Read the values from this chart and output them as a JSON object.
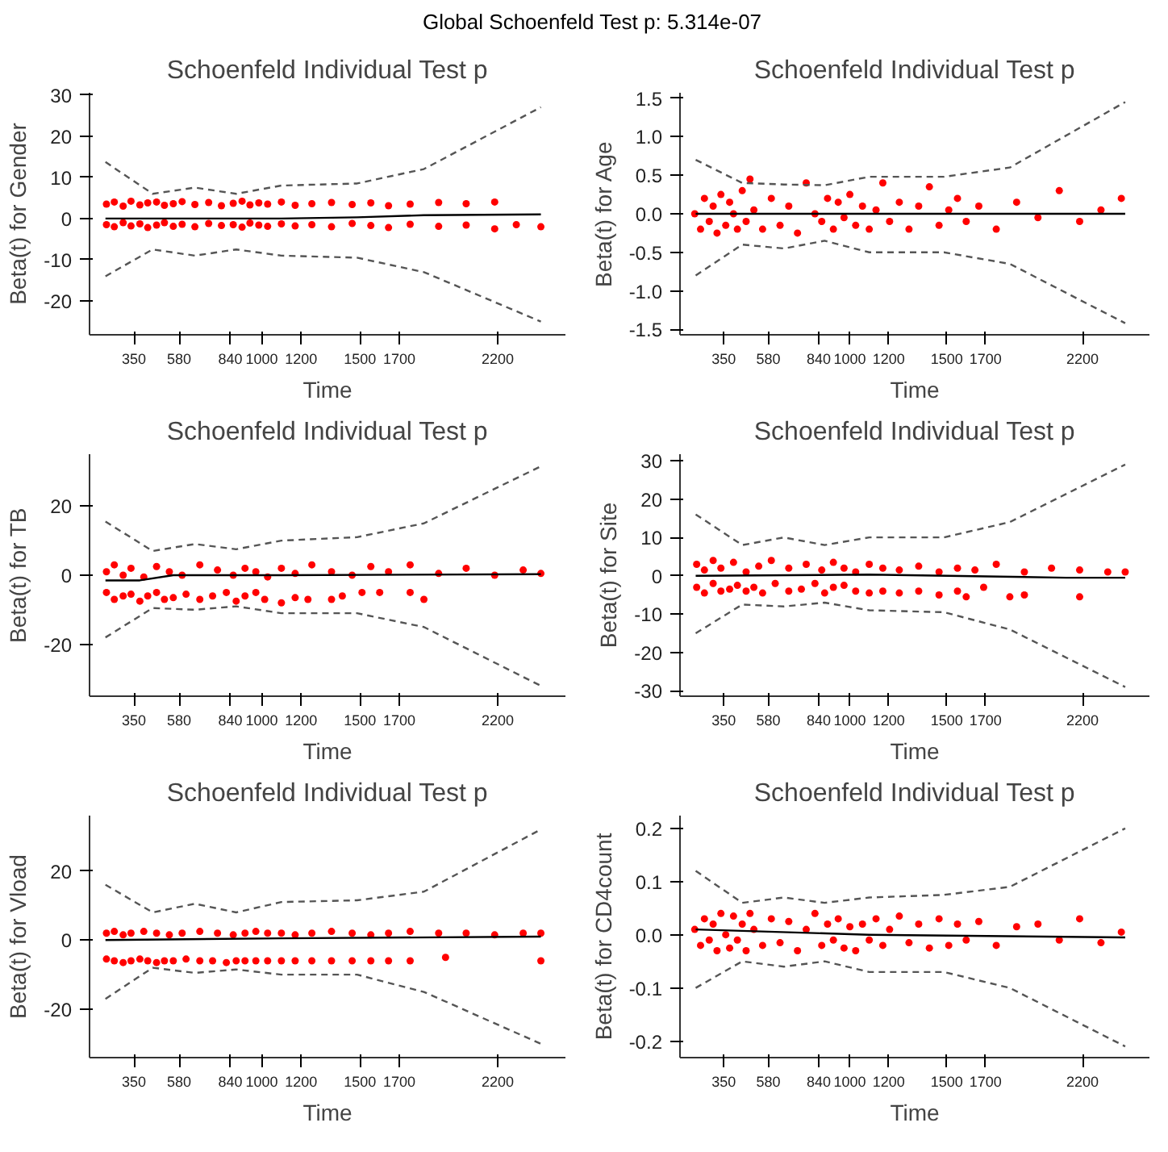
{
  "chart_data": [
    {
      "type": "scatter",
      "title": "Schoenfeld Individual Test p",
      "xlabel": "Time",
      "ylabel": "Beta(t) for Gender",
      "annotations": [
        "Global Schoenfeld Test p: 5.314e-07"
      ],
      "xlim": [
        124,
        2545
      ],
      "xticks": [
        350,
        580,
        840,
        1000,
        1200,
        1500,
        1700,
        2200
      ],
      "ylim": [
        -28.2,
        30.5
      ],
      "yticks": [
        -20,
        -10,
        0,
        10,
        20,
        30
      ],
      "series": [
        {
          "marker": "circle",
          "color": "#ff0000",
          "x": [
            210,
            250,
            295,
            335,
            380,
            420,
            465,
            505,
            550,
            595,
            660,
            730,
            795,
            855,
            900,
            940,
            985,
            1030,
            1100,
            1170,
            1255,
            1355,
            1460,
            1555,
            1645,
            1755,
            1900,
            2040,
            2185,
            210,
            250,
            295,
            335,
            380,
            420,
            465,
            505,
            550,
            595,
            660,
            730,
            795,
            855,
            900,
            940,
            985,
            1030,
            1100,
            1170,
            1255,
            1355,
            1460,
            1555,
            1645,
            1755,
            1900,
            2040,
            2185,
            2295,
            2420
          ],
          "values": [
            3.5,
            4,
            3,
            4.2,
            3.3,
            3.8,
            4,
            3.2,
            3.6,
            4.1,
            3.4,
            3.9,
            3.1,
            3.7,
            4.2,
            3.3,
            3.8,
            3.5,
            4,
            3.2,
            3.6,
            3.9,
            3.4,
            3.8,
            3.1,
            3.5,
            3.9,
            3.6,
            4,
            -1.5,
            -2,
            -1,
            -1.8,
            -1.3,
            -2.2,
            -1.6,
            -1,
            -1.9,
            -1.4,
            -2,
            -1.2,
            -1.7,
            -1.5,
            -2.1,
            -1.1,
            -1.6,
            -1.9,
            -1.3,
            -1.8,
            -1.5,
            -2,
            -1.2,
            -1.7,
            -2.2,
            -1.4,
            -1.9,
            -1.6,
            -2.5,
            -1.5,
            -2
          ]
        },
        {
          "type": "line",
          "marker": "none",
          "line_style": "solid",
          "color": "#000000",
          "x": [
            205,
            1100,
            1485,
            1825,
            2420
          ],
          "values": [
            0,
            0,
            0.3,
            0.8,
            1
          ]
        },
        {
          "type": "line",
          "marker": "none",
          "line_style": "dashed",
          "color": "#555555",
          "x": [
            205,
            445,
            660,
            870,
            1100,
            1485,
            1825,
            2420
          ],
          "values": [
            13.7,
            6,
            7.5,
            6,
            8,
            8.5,
            12,
            27
          ]
        },
        {
          "type": "line",
          "marker": "none",
          "line_style": "dashed",
          "color": "#555555",
          "x": [
            205,
            445,
            660,
            870,
            1100,
            1485,
            1825,
            2420
          ],
          "values": [
            -14,
            -7.5,
            -9,
            -7.5,
            -9,
            -9.5,
            -13,
            -25
          ]
        }
      ]
    },
    {
      "type": "scatter",
      "title": "Schoenfeld Individual Test p",
      "xlabel": "Time",
      "ylabel": "Beta(t) for Age",
      "xlim": [
        124,
        2545
      ],
      "xticks": [
        350,
        580,
        840,
        1000,
        1200,
        1500,
        1700,
        2200
      ],
      "ylim": [
        -1.57,
        1.57
      ],
      "yticks": [
        {
          "value": -1.5,
          "label": "-1.5"
        },
        {
          "value": -1,
          "label": "-1.0"
        },
        {
          "value": -0.5,
          "label": "-0.5"
        },
        {
          "value": 0,
          "label": "0.0"
        },
        {
          "value": 0.5,
          "label": "0.5"
        },
        {
          "value": 1,
          "label": "1.0"
        },
        {
          "value": 1.5,
          "label": "1.5"
        }
      ],
      "series": [
        {
          "marker": "circle",
          "color": "#ff0000",
          "x": [
            200,
            230,
            250,
            275,
            295,
            315,
            335,
            360,
            380,
            400,
            420,
            445,
            465,
            485,
            505,
            550,
            595,
            640,
            685,
            730,
            775,
            820,
            855,
            885,
            915,
            940,
            970,
            1000,
            1030,
            1065,
            1100,
            1135,
            1170,
            1205,
            1255,
            1305,
            1355,
            1410,
            1460,
            1510,
            1555,
            1600,
            1665,
            1755,
            1860,
            1970,
            2080,
            2185,
            2295,
            2400
          ],
          "values": [
            0,
            -0.2,
            0.2,
            -0.1,
            0.1,
            -0.25,
            0.25,
            -0.15,
            0.15,
            0,
            -0.2,
            0.3,
            -0.1,
            0.45,
            0.05,
            -0.2,
            0.2,
            -0.15,
            0.1,
            -0.25,
            0.4,
            0,
            -0.1,
            0.2,
            -0.2,
            0.15,
            -0.05,
            0.25,
            -0.15,
            0.1,
            -0.2,
            0.05,
            0.4,
            -0.1,
            0.15,
            -0.2,
            0.1,
            0.35,
            -0.15,
            0.05,
            0.2,
            -0.1,
            0.1,
            -0.2,
            0.15,
            -0.05,
            0.3,
            -0.1,
            0.05,
            0.2
          ]
        },
        {
          "type": "line",
          "marker": "none",
          "line_style": "solid",
          "color": "#000000",
          "x": [
            205,
            1100,
            2420
          ],
          "values": [
            0,
            0,
            0
          ]
        },
        {
          "type": "line",
          "marker": "none",
          "line_style": "dashed",
          "color": "#555555",
          "x": [
            205,
            445,
            660,
            870,
            1100,
            1485,
            1825,
            2420
          ],
          "values": [
            0.7,
            0.4,
            0.38,
            0.37,
            0.48,
            0.48,
            0.6,
            1.45
          ]
        },
        {
          "type": "line",
          "marker": "none",
          "line_style": "dashed",
          "color": "#555555",
          "x": [
            205,
            445,
            660,
            870,
            1100,
            1485,
            1825,
            2420
          ],
          "values": [
            -0.8,
            -0.4,
            -0.45,
            -0.35,
            -0.5,
            -0.5,
            -0.65,
            -1.42
          ]
        }
      ]
    },
    {
      "type": "scatter",
      "title": "Schoenfeld Individual Test p",
      "xlabel": "Time",
      "ylabel": "Beta(t) for TB",
      "xlim": [
        124,
        2545
      ],
      "xticks": [
        350,
        580,
        840,
        1000,
        1200,
        1500,
        1700,
        2200
      ],
      "ylim": [
        -35,
        35
      ],
      "yticks": [
        -20,
        0,
        20
      ],
      "series": [
        {
          "marker": "circle",
          "color": "#ff0000",
          "x": [
            210,
            250,
            295,
            335,
            400,
            465,
            530,
            595,
            685,
            775,
            855,
            915,
            970,
            1030,
            1100,
            1170,
            1255,
            1355,
            1460,
            1555,
            1645,
            1755,
            1900,
            2040,
            2185,
            2330,
            2420,
            210,
            250,
            295,
            335,
            380,
            420,
            465,
            505,
            550,
            615,
            685,
            750,
            820,
            870,
            915,
            970,
            1015,
            1100,
            1170,
            1235,
            1355,
            1410,
            1510,
            1600,
            1755,
            1825
          ],
          "values": [
            1,
            3,
            0,
            2,
            -0.5,
            2.5,
            1,
            0,
            3,
            1.5,
            0,
            2,
            1,
            -0.5,
            2,
            0.5,
            3,
            1,
            0,
            2.5,
            1,
            3,
            0.5,
            2,
            0,
            1.5,
            0.5,
            -5,
            -7,
            -6,
            -5.5,
            -7.5,
            -6,
            -5,
            -7,
            -6.5,
            -5.5,
            -7,
            -6,
            -5,
            -7.5,
            -6,
            -5,
            -7,
            -8,
            -6.5,
            -7,
            -7,
            -6,
            -5,
            -5,
            -5,
            -7
          ]
        },
        {
          "type": "line",
          "marker": "none",
          "line_style": "solid",
          "color": "#000000",
          "x": [
            205,
            380,
            550,
            1100,
            2420
          ],
          "values": [
            -1.5,
            -1.5,
            0,
            0,
            0.3
          ]
        },
        {
          "type": "line",
          "marker": "none",
          "line_style": "dashed",
          "color": "#555555",
          "x": [
            205,
            445,
            660,
            870,
            1100,
            1485,
            1825,
            2420
          ],
          "values": [
            15.5,
            7,
            9,
            7.5,
            10,
            11,
            15,
            31.5
          ]
        },
        {
          "type": "line",
          "marker": "none",
          "line_style": "dashed",
          "color": "#555555",
          "x": [
            205,
            445,
            660,
            870,
            1100,
            1485,
            1825,
            2420
          ],
          "values": [
            -18,
            -9.5,
            -10,
            -9,
            -11,
            -11,
            -15,
            -32
          ]
        }
      ]
    },
    {
      "type": "scatter",
      "title": "Schoenfeld Individual Test p",
      "xlabel": "Time",
      "ylabel": "Beta(t) for Site",
      "xlim": [
        124,
        2545
      ],
      "xticks": [
        350,
        580,
        840,
        1000,
        1200,
        1500,
        1700,
        2200
      ],
      "ylim": [
        -31.4,
        31.7
      ],
      "yticks": [
        -30,
        -20,
        -10,
        0,
        10,
        20,
        30
      ],
      "series": [
        {
          "marker": "circle",
          "color": "#ff0000",
          "x": [
            210,
            250,
            295,
            335,
            400,
            465,
            530,
            595,
            685,
            775,
            855,
            915,
            970,
            1030,
            1100,
            1170,
            1255,
            1355,
            1460,
            1555,
            1645,
            1755,
            1900,
            2040,
            2185,
            2330,
            2420,
            210,
            250,
            295,
            335,
            380,
            420,
            465,
            505,
            550,
            615,
            685,
            750,
            820,
            870,
            915,
            970,
            1030,
            1100,
            1170,
            1255,
            1355,
            1460,
            1555,
            1600,
            1690,
            1825,
            1900,
            2185
          ],
          "values": [
            3,
            1.5,
            4,
            2,
            3.5,
            1,
            2.5,
            4,
            2,
            3,
            1.5,
            3.5,
            2,
            1,
            3,
            2,
            1.5,
            2.5,
            1,
            2,
            1.5,
            3,
            1,
            2,
            1.5,
            1,
            1,
            -3,
            -4.5,
            -2,
            -4,
            -3.5,
            -2.5,
            -4,
            -3,
            -4.5,
            -2,
            -4,
            -3.5,
            -2,
            -4.5,
            -3,
            -2.5,
            -4,
            -4.5,
            -4,
            -4.5,
            -4,
            -5,
            -4,
            -5.5,
            -3,
            -5.5,
            -5,
            -5.5
          ]
        },
        {
          "type": "line",
          "marker": "none",
          "line_style": "solid",
          "color": "#000000",
          "x": [
            205,
            1100,
            2115,
            2420
          ],
          "values": [
            0,
            0.3,
            -0.5,
            -0.5
          ]
        },
        {
          "type": "line",
          "marker": "none",
          "line_style": "dashed",
          "color": "#555555",
          "x": [
            205,
            445,
            660,
            870,
            1100,
            1485,
            1825,
            2420
          ],
          "values": [
            16,
            8,
            10,
            8,
            10,
            10,
            14,
            29
          ]
        },
        {
          "type": "line",
          "marker": "none",
          "line_style": "dashed",
          "color": "#555555",
          "x": [
            205,
            445,
            660,
            870,
            1100,
            1485,
            1825,
            2420
          ],
          "values": [
            -15,
            -7.5,
            -8,
            -7,
            -9,
            -9.5,
            -14,
            -29
          ]
        }
      ]
    },
    {
      "type": "scatter",
      "title": "Schoenfeld Individual Test p",
      "xlabel": "Time",
      "ylabel": "Beta(t) for Vload",
      "xlim": [
        124,
        2545
      ],
      "xticks": [
        350,
        580,
        840,
        1000,
        1200,
        1500,
        1700,
        2200
      ],
      "ylim": [
        -34,
        36
      ],
      "yticks": [
        -20,
        0,
        20
      ],
      "series": [
        {
          "marker": "circle",
          "color": "#ff0000",
          "x": [
            210,
            250,
            295,
            335,
            400,
            465,
            530,
            595,
            685,
            775,
            855,
            915,
            970,
            1030,
            1100,
            1170,
            1255,
            1355,
            1460,
            1555,
            1645,
            1755,
            1900,
            2040,
            2185,
            2330,
            2420,
            210,
            250,
            295,
            335,
            380,
            420,
            465,
            505,
            550,
            615,
            685,
            750,
            820,
            870,
            915,
            970,
            1030,
            1100,
            1170,
            1255,
            1355,
            1460,
            1555,
            1645,
            1755,
            1935,
            2420
          ],
          "values": [
            2,
            2.5,
            1.5,
            2,
            2.5,
            2,
            1.5,
            2,
            2.5,
            2,
            1.5,
            2,
            2.5,
            2,
            2,
            1.5,
            2,
            2.5,
            2,
            1.5,
            2,
            2.5,
            2,
            2,
            1.5,
            2,
            2,
            -5.5,
            -6,
            -6.5,
            -6,
            -5.5,
            -6,
            -6.5,
            -6,
            -6,
            -5.5,
            -6,
            -6,
            -6.5,
            -6,
            -6,
            -6,
            -6,
            -6,
            -6,
            -6,
            -6,
            -6,
            -6,
            -6,
            -6,
            -5,
            -6
          ]
        },
        {
          "type": "line",
          "marker": "none",
          "line_style": "solid",
          "color": "#000000",
          "x": [
            205,
            1100,
            2420
          ],
          "values": [
            0,
            0.5,
            1
          ]
        },
        {
          "type": "line",
          "marker": "none",
          "line_style": "dashed",
          "color": "#555555",
          "x": [
            205,
            445,
            660,
            870,
            1100,
            1485,
            1825,
            2420
          ],
          "values": [
            16,
            8,
            10.5,
            8,
            11,
            11.5,
            14,
            32
          ]
        },
        {
          "type": "line",
          "marker": "none",
          "line_style": "dashed",
          "color": "#555555",
          "x": [
            205,
            445,
            660,
            870,
            1100,
            1485,
            1825,
            2420
          ],
          "values": [
            -17,
            -8,
            -9.5,
            -8.5,
            -10,
            -10,
            -15,
            -30
          ]
        }
      ]
    },
    {
      "type": "scatter",
      "title": "Schoenfeld Individual Test p",
      "xlabel": "Time",
      "ylabel": "Beta(t) for CD4count",
      "xlim": [
        124,
        2545
      ],
      "xticks": [
        350,
        580,
        840,
        1000,
        1200,
        1500,
        1700,
        2200
      ],
      "ylim": [
        -0.231,
        0.224
      ],
      "yticks": [
        {
          "value": -0.2,
          "label": "-0.2"
        },
        {
          "value": -0.1,
          "label": "-0.1"
        },
        {
          "value": 0,
          "label": "0.0"
        },
        {
          "value": 0.1,
          "label": "0.1"
        },
        {
          "value": 0.2,
          "label": "0.2"
        }
      ],
      "series": [
        {
          "marker": "circle",
          "color": "#ff0000",
          "x": [
            200,
            230,
            250,
            275,
            295,
            315,
            335,
            360,
            380,
            400,
            420,
            445,
            465,
            485,
            505,
            550,
            595,
            640,
            685,
            730,
            775,
            820,
            855,
            885,
            915,
            940,
            970,
            1000,
            1030,
            1065,
            1100,
            1135,
            1170,
            1205,
            1255,
            1305,
            1355,
            1410,
            1460,
            1510,
            1555,
            1600,
            1665,
            1755,
            1860,
            1970,
            2080,
            2185,
            2295,
            2400
          ],
          "values": [
            0.01,
            -0.02,
            0.03,
            -0.01,
            0.02,
            -0.03,
            0.04,
            0,
            -0.025,
            0.035,
            -0.01,
            0.02,
            -0.03,
            0.04,
            0.01,
            -0.02,
            0.03,
            -0.015,
            0.025,
            -0.03,
            0.01,
            0.04,
            -0.02,
            0.02,
            -0.01,
            0.03,
            -0.025,
            0.015,
            -0.03,
            0.02,
            -0.01,
            0.03,
            -0.02,
            0.01,
            0.035,
            -0.015,
            0.02,
            -0.025,
            0.03,
            -0.02,
            0.02,
            -0.01,
            0.025,
            -0.02,
            0.015,
            0.02,
            -0.01,
            0.03,
            -0.015,
            0.005
          ]
        },
        {
          "type": "line",
          "marker": "none",
          "line_style": "solid",
          "color": "#000000",
          "x": [
            205,
            1100,
            2420
          ],
          "values": [
            0.01,
            0,
            -0.005
          ]
        },
        {
          "type": "line",
          "marker": "none",
          "line_style": "dashed",
          "color": "#555555",
          "x": [
            205,
            445,
            660,
            870,
            1100,
            1485,
            1825,
            2420
          ],
          "values": [
            0.12,
            0.06,
            0.07,
            0.06,
            0.07,
            0.075,
            0.09,
            0.2
          ]
        },
        {
          "type": "line",
          "marker": "none",
          "line_style": "dashed",
          "color": "#555555",
          "x": [
            205,
            445,
            660,
            870,
            1100,
            1485,
            1825,
            2420
          ],
          "values": [
            -0.1,
            -0.05,
            -0.06,
            -0.05,
            -0.07,
            -0.07,
            -0.1,
            -0.21
          ]
        }
      ]
    }
  ]
}
